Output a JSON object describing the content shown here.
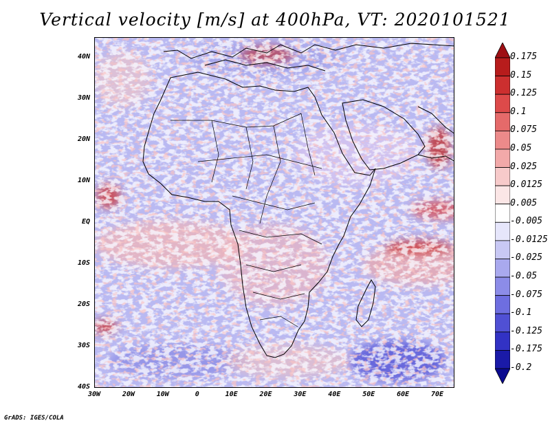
{
  "title": "Vertical velocity [m/s] at 400hPa, VT: 2020101521",
  "footer": "GrADS: IGES/COLA",
  "map_extent": {
    "lon_min": -30,
    "lon_max": 75,
    "lat_min": -40,
    "lat_max": 45
  },
  "lat_ticks": [
    {
      "label": "40N",
      "value": 40
    },
    {
      "label": "30N",
      "value": 30
    },
    {
      "label": "20N",
      "value": 20
    },
    {
      "label": "10N",
      "value": 10
    },
    {
      "label": "EQ",
      "value": 0
    },
    {
      "label": "10S",
      "value": -10
    },
    {
      "label": "20S",
      "value": -20
    },
    {
      "label": "30S",
      "value": -30
    },
    {
      "label": "40S",
      "value": -40
    }
  ],
  "lon_ticks": [
    {
      "label": "30W",
      "value": -30
    },
    {
      "label": "20W",
      "value": -20
    },
    {
      "label": "10W",
      "value": -10
    },
    {
      "label": "0",
      "value": 0
    },
    {
      "label": "10E",
      "value": 10
    },
    {
      "label": "20E",
      "value": 20
    },
    {
      "label": "30E",
      "value": 30
    },
    {
      "label": "40E",
      "value": 40
    },
    {
      "label": "50E",
      "value": 50
    },
    {
      "label": "60E",
      "value": 60
    },
    {
      "label": "70E",
      "value": 70
    }
  ],
  "colorbar": {
    "units": "m/s",
    "labels": [
      "0.175",
      "0.15",
      "0.125",
      "0.1",
      "0.075",
      "0.05",
      "0.025",
      "0.0125",
      "0.005",
      "-0.005",
      "-0.0125",
      "-0.025",
      "-0.05",
      "-0.075",
      "-0.1",
      "-0.125",
      "-0.175",
      "-0.2"
    ],
    "colors": [
      "#9e0f14",
      "#b71c1c",
      "#cc2f2f",
      "#dd4a4a",
      "#e56a6a",
      "#ec8a8a",
      "#f2a9a9",
      "#f7caca",
      "#fbe6e6",
      "#ffffff",
      "#e6e6fb",
      "#c8c8f4",
      "#a9a9ee",
      "#8c8ce8",
      "#6e6ee0",
      "#5050d4",
      "#3232c4",
      "#1a1aa8",
      "#0a0a90"
    ]
  }
}
